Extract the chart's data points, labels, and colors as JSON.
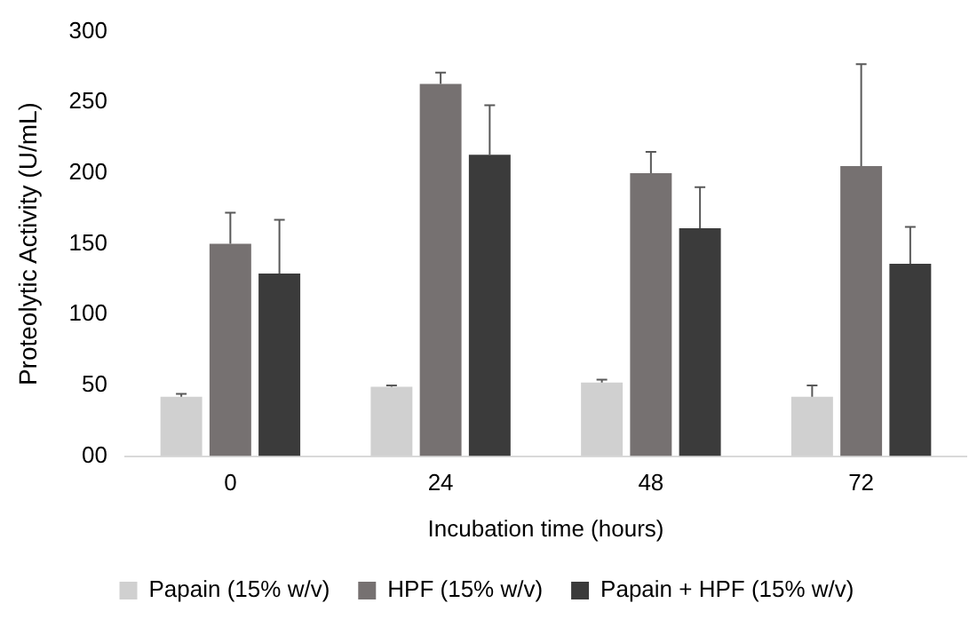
{
  "chart_data": {
    "type": "bar",
    "xlabel": "Incubation time (hours)",
    "ylabel": "Proteolytic Activity (U/mL)",
    "categories": [
      "0",
      "24",
      "48",
      "72"
    ],
    "series": [
      {
        "name": "Papain (15% w/v)",
        "color": "#d0d0d0",
        "values": [
          42,
          49,
          52,
          42
        ],
        "errors": [
          [
            42,
            44
          ],
          [
            49,
            50
          ],
          [
            52,
            54
          ],
          [
            42,
            50
          ]
        ]
      },
      {
        "name": "HPF (15% w/v)",
        "color": "#767171",
        "values": [
          150,
          263,
          200,
          205
        ],
        "errors": [
          [
            150,
            172
          ],
          [
            263,
            271
          ],
          [
            200,
            215
          ],
          [
            205,
            277
          ]
        ]
      },
      {
        "name": "Papain + HPF (15% w/v)",
        "color": "#3b3b3b",
        "values": [
          129,
          213,
          161,
          136
        ],
        "errors": [
          [
            129,
            167
          ],
          [
            213,
            248
          ],
          [
            161,
            190
          ],
          [
            136,
            162
          ]
        ]
      }
    ],
    "ylim": [
      0,
      300
    ],
    "yticks": [
      {
        "value": 0,
        "label": "00"
      },
      50,
      100,
      150,
      200,
      250,
      300
    ],
    "grid": false,
    "legend": "bottom"
  }
}
